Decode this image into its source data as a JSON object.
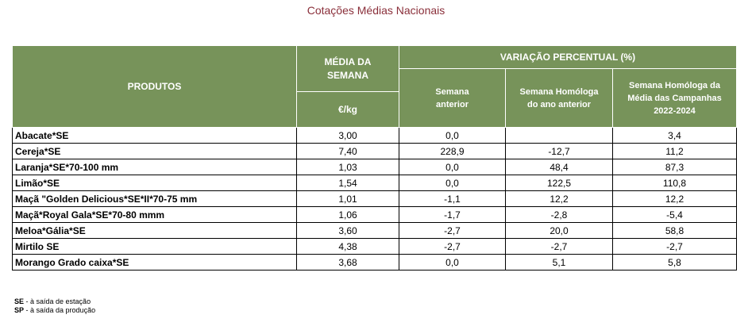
{
  "title": "Cotações Médias Nacionais",
  "headers": {
    "produtos": "PRODUTOS",
    "media_line1": "MÉDIA DA",
    "media_line2": "SEMANA",
    "variacao": "VARIAÇÃO PERCENTUAL (%)",
    "unit": "€/kg",
    "semana_anterior_1": "Semana",
    "semana_anterior_2": "anterior",
    "homologa_1": "Semana Homóloga",
    "homologa_2": "do ano anterior",
    "campanhas_1": "Semana Homóloga da",
    "campanhas_2": "Média das Campanhas",
    "campanhas_3": "2022-2024"
  },
  "rows": [
    {
      "produto": "Abacate*SE",
      "media": "3,00",
      "anterior": "0,0",
      "homologa": "",
      "campanhas": "3,4"
    },
    {
      "produto": "Cereja*SE",
      "media": "7,40",
      "anterior": "228,9",
      "homologa": "-12,7",
      "campanhas": "11,2"
    },
    {
      "produto": "Laranja*SE*70-100 mm",
      "media": "1,03",
      "anterior": "0,0",
      "homologa": "48,4",
      "campanhas": "87,3"
    },
    {
      "produto": "Limão*SE",
      "media": "1,54",
      "anterior": "0,0",
      "homologa": "122,5",
      "campanhas": "110,8"
    },
    {
      "produto": "Maçã \"Golden Delicious*SE*II*70-75 mm",
      "media": "1,01",
      "anterior": "-1,1",
      "homologa": "12,2",
      "campanhas": "12,2"
    },
    {
      "produto": "Maçã*Royal Gala*SE*70-80 mmm",
      "media": "1,06",
      "anterior": "-1,7",
      "homologa": "-2,8",
      "campanhas": "-5,4"
    },
    {
      "produto": "Meloa*Gália*SE",
      "media": "3,60",
      "anterior": "-2,7",
      "homologa": "20,0",
      "campanhas": "58,8"
    },
    {
      "produto": "Mirtilo SE",
      "media": "4,38",
      "anterior": "-2,7",
      "homologa": "-2,7",
      "campanhas": "-2,7"
    },
    {
      "produto": "Morango Grado caixa*SE",
      "media": "3,68",
      "anterior": "0,0",
      "homologa": "5,1",
      "campanhas": "5,8"
    }
  ],
  "legend": [
    {
      "abbr": "SE",
      "text": " - à saída de estação"
    },
    {
      "abbr": "SP",
      "text": " - à saída da produção"
    }
  ],
  "colors": {
    "header_bg": "#77935a",
    "title": "#8a2f3a"
  }
}
